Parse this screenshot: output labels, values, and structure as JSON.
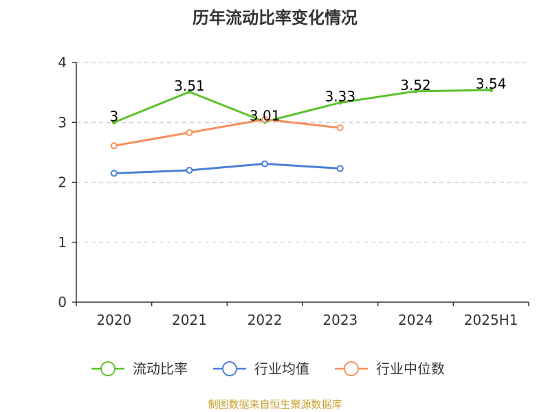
{
  "chart_data": {
    "type": "line",
    "title": "历年流动比率变化情况",
    "categories": [
      "2020",
      "2021",
      "2022",
      "2023",
      "2024",
      "2025H1"
    ],
    "ylim": [
      0,
      4
    ],
    "yticks": [
      0,
      1,
      2,
      3,
      4
    ],
    "grid": true,
    "legend_position": "bottom",
    "series": [
      {
        "name": "流动比率",
        "color": "#5bc12b",
        "values": [
          3,
          3.51,
          3.01,
          3.33,
          3.52,
          3.54
        ],
        "labels": [
          "3",
          "3.51",
          "3.01",
          "3.33",
          "3.52",
          "3.54"
        ],
        "show_labels": true
      },
      {
        "name": "行业均值",
        "color": "#4a7fd6",
        "values": [
          2.15,
          2.2,
          2.31,
          2.23,
          null,
          null
        ],
        "show_labels": false
      },
      {
        "name": "行业中位数",
        "color": "#f5905a",
        "values": [
          2.61,
          2.83,
          3.05,
          2.91,
          null,
          null
        ],
        "show_labels": false
      }
    ]
  },
  "source": "制图数据来自恒生聚源数据库"
}
